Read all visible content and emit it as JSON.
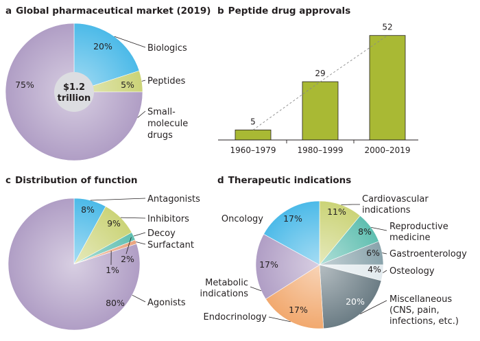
{
  "colors": {
    "purple": "#a894bf",
    "blue": "#3ab3e6",
    "olive": "#c6cf6a",
    "teal": "#4fb8a8",
    "slate": "#7d9aa3",
    "paleblue": "#dfe8ec",
    "darkslate": "#5c6f78",
    "orange": "#f0a060",
    "bar": "#a9b934",
    "center": "#dcdde1",
    "surfactant": "#e89a70"
  },
  "chart_data": [
    {
      "panel": "a",
      "type": "pie",
      "title": "Global pharmaceutical market (2019)",
      "center_label": [
        "$1.2",
        "trillion"
      ],
      "slices": [
        {
          "name": "Biologics",
          "value": 20,
          "label": "20%",
          "color": "#3ab3e6"
        },
        {
          "name": "Peptides",
          "value": 5,
          "label": "5%",
          "color": "#c6cf6a"
        },
        {
          "name": "Small-molecule drugs",
          "lines": [
            "Small-",
            "molecule",
            "drugs"
          ],
          "value": 75,
          "label": "75%",
          "color": "#a894bf"
        }
      ]
    },
    {
      "panel": "b",
      "type": "bar",
      "title": "Peptide drug approvals",
      "categories": [
        "1960–1979",
        "1980–1999",
        "2000–2019"
      ],
      "values": [
        5,
        29,
        52
      ],
      "ylim": [
        0,
        56
      ],
      "trend_line": "dashed"
    },
    {
      "panel": "c",
      "type": "pie",
      "title": "Distribution of function",
      "slices": [
        {
          "name": "Antagonists",
          "value": 8,
          "label": "8%",
          "color": "#3ab3e6"
        },
        {
          "name": "Inhibitors",
          "value": 9,
          "label": "9%",
          "color": "#c6cf6a"
        },
        {
          "name": "Decoy",
          "value": 2,
          "label": "2%",
          "color": "#4fb8a8"
        },
        {
          "name": "Surfactant",
          "value": 1,
          "label": "1%",
          "color": "#e89a70"
        },
        {
          "name": "Agonists",
          "value": 80,
          "label": "80%",
          "color": "#a894bf"
        }
      ]
    },
    {
      "panel": "d",
      "type": "pie",
      "title": "Therapeutic indications",
      "slices": [
        {
          "name": "Cardiovascular indications",
          "lines": [
            "Cardiovascular",
            "indications"
          ],
          "value": 11,
          "label": "11%",
          "color": "#c6cf6a"
        },
        {
          "name": "Reproductive medicine",
          "lines": [
            "Reproductive",
            "medicine"
          ],
          "value": 8,
          "label": "8%",
          "color": "#4fb8a8"
        },
        {
          "name": "Gastroenterology",
          "lines": [
            "Gastroenterology"
          ],
          "value": 6,
          "label": "6%",
          "color": "#7d9aa3"
        },
        {
          "name": "Osteology",
          "lines": [
            "Osteology"
          ],
          "value": 4,
          "label": "4%",
          "color": "#dfe8ec"
        },
        {
          "name": "Miscellaneous (CNS, pain, infections, etc.)",
          "lines": [
            "Miscellaneous",
            "(CNS, pain,",
            "infections, etc.)"
          ],
          "value": 20,
          "label": "20%",
          "color": "#5c6f78"
        },
        {
          "name": "Endocrinology",
          "lines": [
            "Endocrinology"
          ],
          "value": 17,
          "label": "17%",
          "color": "#f0a060"
        },
        {
          "name": "Metabolic indications",
          "lines": [
            "Metabolic",
            "indications"
          ],
          "value": 17,
          "label": "17%",
          "color": "#a894bf"
        },
        {
          "name": "Oncology",
          "lines": [
            "Oncology"
          ],
          "value": 17,
          "label": "17%",
          "color": "#3ab3e6"
        }
      ]
    }
  ],
  "panel_letters": [
    "a",
    "b",
    "c",
    "d"
  ]
}
